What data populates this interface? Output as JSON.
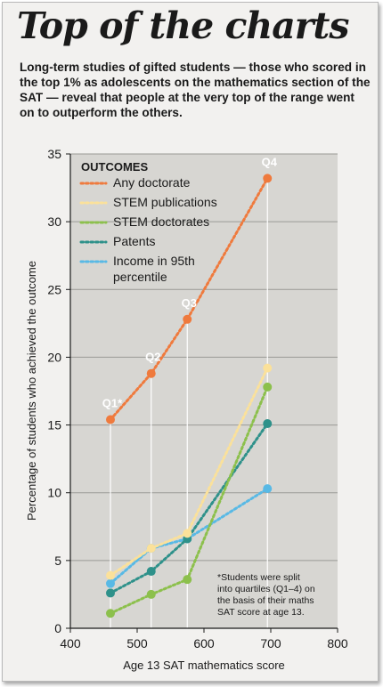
{
  "title": "Top of the charts",
  "subtitle": "Long-term studies of gifted students — those who scored in the top 1% as adolescents on the mathematics section of the SAT — reveal that people at the very top of the range went on to outperform the others.",
  "note": [
    "*Students were split",
    "into quartiles (Q1–4) on",
    "the basis of their maths",
    "SAT score at age 13."
  ],
  "chart_data": {
    "type": "line",
    "xlabel": "Age 13 SAT mathematics score",
    "ylabel": "Percentage of students who achieved the outcome",
    "xlim": [
      400,
      800
    ],
    "ylim": [
      0,
      35
    ],
    "xticks": [
      400,
      500,
      600,
      700,
      800
    ],
    "yticks": [
      0,
      5,
      10,
      15,
      20,
      25,
      30,
      35
    ],
    "grid": true,
    "legend_title": "OUTCOMES",
    "legend_position": "top-left",
    "x": [
      460,
      521,
      575,
      695
    ],
    "quartile_labels": [
      "Q1*",
      "Q2",
      "Q3",
      "Q4"
    ],
    "series": [
      {
        "name": "Any doctorate",
        "color": "#ef7a3d",
        "values": [
          15.4,
          18.8,
          22.8,
          33.2
        ]
      },
      {
        "name": "STEM publications",
        "color": "#fbe19a",
        "values": [
          3.9,
          5.9,
          7.0,
          19.2
        ]
      },
      {
        "name": "STEM doctorates",
        "color": "#8cc04c",
        "values": [
          1.1,
          2.5,
          3.6,
          17.8
        ]
      },
      {
        "name": "Patents",
        "color": "#2e918a",
        "values": [
          2.6,
          4.2,
          6.6,
          15.1
        ]
      },
      {
        "name": "Income in 95th percentile",
        "color": "#58b9e5",
        "values": [
          3.3,
          5.9,
          6.6,
          10.3
        ]
      }
    ]
  }
}
